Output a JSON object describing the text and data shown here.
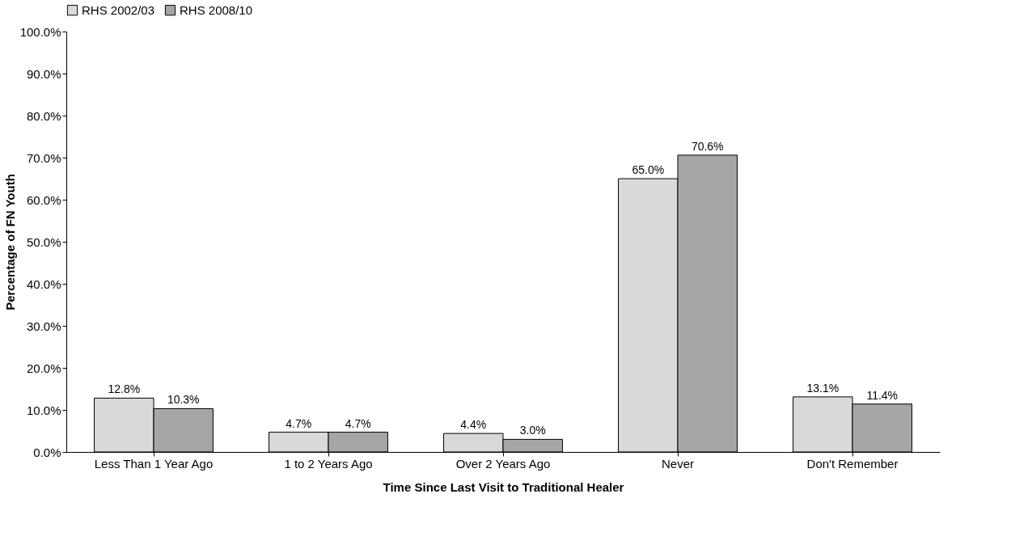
{
  "chart_data": {
    "type": "bar",
    "xlabel": "Time Since Last Visit to Traditional Healer",
    "ylabel": "Percentage of FN Youth",
    "categories": [
      "Less Than 1 Year Ago",
      "1 to 2 Years Ago",
      "Over 2 Years Ago",
      "Never",
      "Don't Remember"
    ],
    "series": [
      {
        "name": "RHS 2002/03",
        "color": "#d9d9d9",
        "values": [
          12.8,
          4.7,
          4.4,
          65.0,
          13.1
        ],
        "value_labels": [
          "12.8%",
          "4.7%",
          "4.4%",
          "65.0%",
          "13.1%"
        ]
      },
      {
        "name": "RHS 2008/10",
        "color": "#a6a6a6",
        "values": [
          10.3,
          4.7,
          3.0,
          70.6,
          11.4
        ],
        "value_labels": [
          "10.3%",
          "4.7%",
          "3.0%",
          "70.6%",
          "11.4%"
        ]
      }
    ],
    "ylim": [
      0,
      100
    ],
    "yticks": [
      {
        "value": 0,
        "label": "0.0%"
      },
      {
        "value": 10,
        "label": "10.0%"
      },
      {
        "value": 20,
        "label": "20.0%"
      },
      {
        "value": 30,
        "label": "30.0%"
      },
      {
        "value": 40,
        "label": "40.0%"
      },
      {
        "value": 50,
        "label": "50.0%"
      },
      {
        "value": 60,
        "label": "60.0%"
      },
      {
        "value": 70,
        "label": "70.0%"
      },
      {
        "value": 80,
        "label": "80.0%"
      },
      {
        "value": 90,
        "label": "90.0%"
      },
      {
        "value": 100,
        "label": "100.0%"
      }
    ],
    "grid": false,
    "legend": "top"
  }
}
